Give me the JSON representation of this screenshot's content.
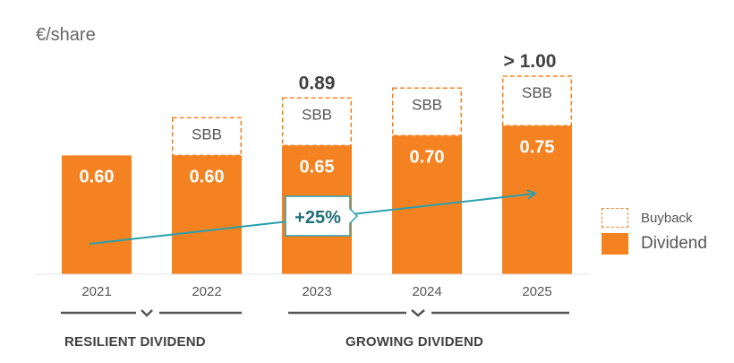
{
  "chart_data": {
    "type": "bar",
    "unit_label": "€/share",
    "categories": [
      "2021",
      "2022",
      "2023",
      "2024",
      "2025"
    ],
    "series": [
      {
        "name": "Dividend",
        "values": [
          0.6,
          0.6,
          0.65,
          0.7,
          0.75
        ],
        "labels": [
          "0.60",
          "0.60",
          "0.65",
          "0.70",
          "0.75"
        ]
      },
      {
        "name": "Buyback",
        "values": [
          0,
          0.19,
          0.24,
          0.24,
          0.25
        ],
        "labels": [
          "",
          "SBB",
          "SBB",
          "SBB",
          "SBB"
        ]
      }
    ],
    "totals": [
      {
        "category": "2023",
        "label": "0.89"
      },
      {
        "category": "2025",
        "label": "> 1.00"
      }
    ],
    "trend": {
      "label": "+25%",
      "from": "2021",
      "to": "2025",
      "color": "#2a9fae"
    },
    "groups": [
      {
        "label": "RESILIENT DIVIDEND",
        "categories": [
          "2021",
          "2022"
        ]
      },
      {
        "label": "GROWING DIVIDEND",
        "categories": [
          "2023",
          "2024",
          "2025"
        ]
      }
    ],
    "legend": [
      {
        "name": "Buyback",
        "style": "dashed"
      },
      {
        "name": "Dividend",
        "style": "solid"
      }
    ],
    "colors": {
      "dividend": "#f58220",
      "buyback_border": "#f58220",
      "trend": "#2a9fae",
      "text": "#555555"
    },
    "ylim": [
      0,
      1.1
    ],
    "legend_position": "right"
  }
}
